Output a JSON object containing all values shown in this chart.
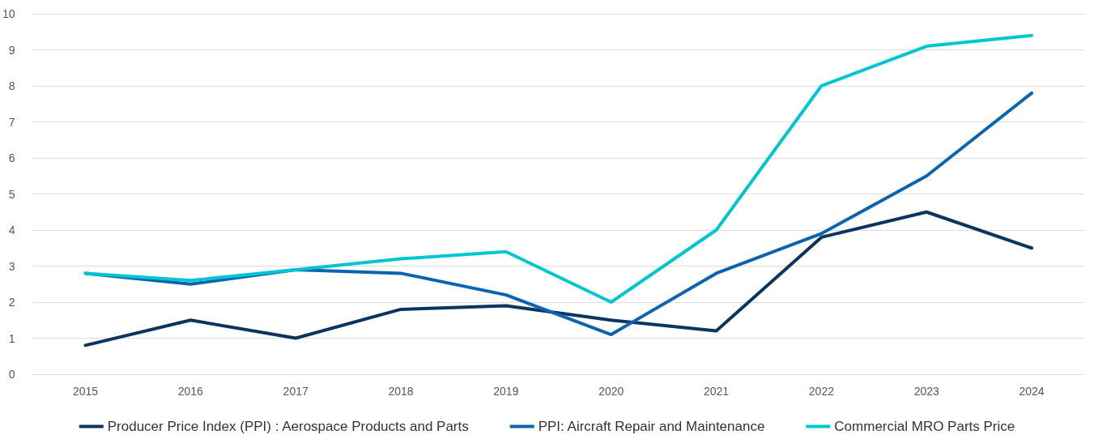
{
  "chart_data": {
    "type": "line",
    "categories": [
      "2015",
      "2016",
      "2017",
      "2018",
      "2019",
      "2020",
      "2021",
      "2022",
      "2023",
      "2024"
    ],
    "series": [
      {
        "name": "Producer Price Index (PPI) : Aerospace Products and Parts",
        "color": "#0b3560",
        "values": [
          0.8,
          1.5,
          1.0,
          1.8,
          1.9,
          1.5,
          1.2,
          3.8,
          4.5,
          3.5
        ]
      },
      {
        "name": "PPI: Aircraft Repair and Maintenance",
        "color": "#0a64b0",
        "values": [
          2.8,
          2.5,
          2.9,
          2.8,
          2.2,
          1.1,
          2.8,
          3.9,
          5.5,
          7.8
        ]
      },
      {
        "name": "Commercial MRO Parts Price",
        "color": "#00c5d2",
        "values": [
          2.8,
          2.6,
          2.9,
          3.2,
          3.4,
          2.0,
          4.0,
          8.0,
          9.1,
          9.4
        ]
      }
    ],
    "ylim": [
      0,
      10
    ],
    "yticks": [
      0,
      1,
      2,
      3,
      4,
      5,
      6,
      7,
      8,
      9,
      10
    ],
    "grid": "y",
    "legend": "bottom",
    "marker": "none",
    "line_style": "solid"
  }
}
